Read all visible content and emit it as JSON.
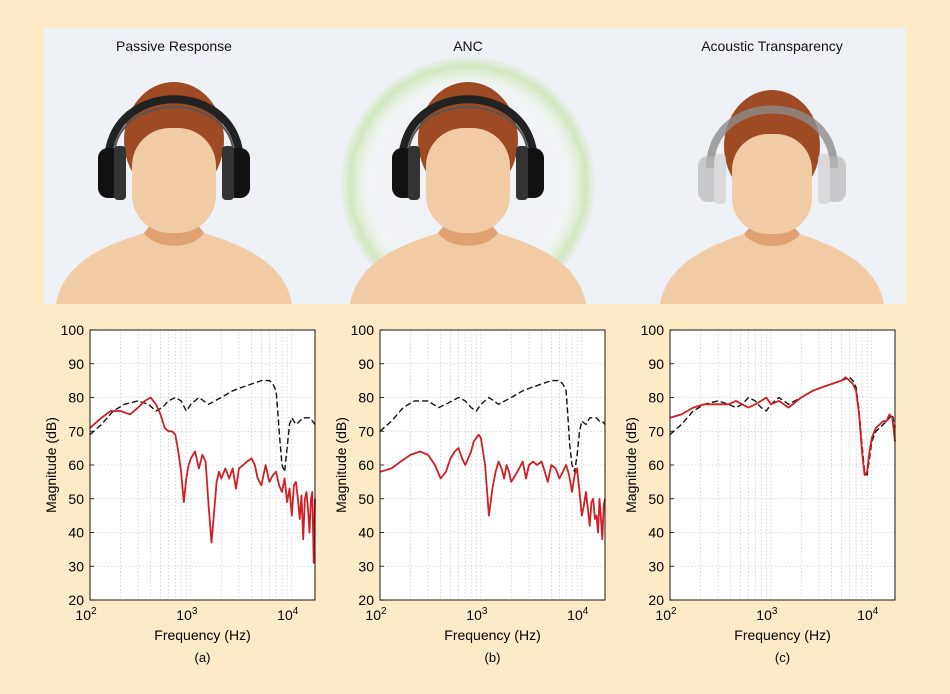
{
  "scene": {
    "labels": [
      "Passive Response",
      "ANC",
      "Acoustic Transparency"
    ]
  },
  "colors": {
    "background": "#fdeac6",
    "panel": "#eef1f5",
    "red": "#d11f25",
    "dashed": "#111111",
    "skin": "#f0cba4",
    "hair": "#9e4a23",
    "anc_glow": "#cde5b8"
  },
  "chart_data": [
    {
      "type": "line",
      "caption": "(a)",
      "xlabel": "Frequency (Hz)",
      "ylabel": "Magnitude (dB)",
      "xscale": "log",
      "xlim": [
        100,
        17000
      ],
      "ylim": [
        20,
        100
      ],
      "yticks": [
        20,
        30,
        40,
        50,
        60,
        70,
        80,
        90,
        100
      ],
      "xtick_labels": [
        "10^2",
        "10^3",
        "10^4"
      ],
      "grid": true,
      "series": [
        {
          "style": "dashed",
          "color": "#111111",
          "x": [
            100,
            130,
            170,
            220,
            300,
            380,
            450,
            520,
            600,
            700,
            800,
            900,
            1000,
            1200,
            1500,
            2000,
            2600,
            3200,
            4000,
            5000,
            6000,
            6500,
            7000,
            7300,
            7600,
            8000,
            8500,
            9000,
            9500,
            10000,
            11000,
            12000,
            13000,
            14000,
            15000,
            16000,
            17000
          ],
          "y": [
            69,
            72,
            76,
            78,
            79,
            78,
            76,
            77,
            79,
            80,
            79,
            76,
            78,
            80,
            78,
            80,
            82,
            83,
            84,
            85,
            85,
            84,
            82,
            75,
            68,
            60,
            58,
            65,
            72,
            74,
            72,
            73,
            74,
            74,
            74,
            73,
            72
          ]
        },
        {
          "style": "solid",
          "color": "#d11f25",
          "x": [
            100,
            130,
            160,
            200,
            250,
            300,
            350,
            400,
            450,
            500,
            550,
            600,
            650,
            700,
            750,
            800,
            850,
            900,
            950,
            1000,
            1100,
            1200,
            1300,
            1400,
            1500,
            1600,
            1700,
            1800,
            1900,
            2000,
            2200,
            2400,
            2600,
            2800,
            3000,
            3300,
            3600,
            4000,
            4300,
            4600,
            5000,
            5500,
            6000,
            6500,
            7000,
            7500,
            8000,
            8500,
            9000,
            9500,
            10000,
            10500,
            11000,
            11500,
            12000,
            12500,
            13000,
            13500,
            14000,
            14500,
            15000,
            15500,
            16000,
            16500,
            17000
          ],
          "y": [
            71,
            74,
            76,
            76,
            75,
            77,
            79,
            80,
            78,
            75,
            71,
            70,
            70,
            69,
            64,
            58,
            49,
            56,
            60,
            62,
            64,
            59,
            63,
            61,
            48,
            37,
            46,
            55,
            58,
            56,
            59,
            56,
            59,
            53,
            59,
            60,
            61,
            62,
            60,
            56,
            54,
            60,
            55,
            57,
            58,
            54,
            52,
            56,
            49,
            53,
            45,
            54,
            55,
            50,
            44,
            51,
            38,
            50,
            52,
            47,
            40,
            50,
            52,
            31,
            50
          ]
        }
      ]
    },
    {
      "type": "line",
      "caption": "(b)",
      "xlabel": "Frequency (Hz)",
      "ylabel": "Magnitude (dB)",
      "xscale": "log",
      "xlim": [
        100,
        17000
      ],
      "ylim": [
        20,
        100
      ],
      "yticks": [
        20,
        30,
        40,
        50,
        60,
        70,
        80,
        90,
        100
      ],
      "xtick_labels": [
        "10^2",
        "10^3",
        "10^4"
      ],
      "grid": true,
      "series": [
        {
          "style": "dashed",
          "color": "#111111",
          "x": [
            100,
            130,
            170,
            220,
            300,
            380,
            450,
            520,
            600,
            700,
            800,
            900,
            1000,
            1200,
            1500,
            2000,
            2600,
            3200,
            4000,
            5000,
            6000,
            6500,
            7000,
            7300,
            7600,
            8000,
            8500,
            9000,
            9500,
            10000,
            11000,
            12000,
            13000,
            14000,
            15000,
            16000,
            17000
          ],
          "y": [
            70,
            73,
            77,
            79,
            79,
            77,
            78,
            79,
            80,
            79,
            77,
            76,
            78,
            80,
            78,
            80,
            82,
            83,
            84,
            85,
            85,
            84,
            82,
            74,
            66,
            60,
            58,
            63,
            70,
            73,
            72,
            74,
            74,
            74,
            73,
            73,
            72
          ]
        },
        {
          "style": "solid",
          "color": "#d11f25",
          "x": [
            100,
            130,
            160,
            200,
            250,
            300,
            350,
            400,
            450,
            500,
            550,
            600,
            650,
            700,
            750,
            800,
            850,
            900,
            950,
            1000,
            1100,
            1200,
            1300,
            1400,
            1500,
            1600,
            1700,
            1800,
            1900,
            2000,
            2200,
            2400,
            2600,
            2800,
            3000,
            3300,
            3600,
            4000,
            4300,
            4600,
            5000,
            5500,
            6000,
            6500,
            7000,
            7500,
            8000,
            8500,
            9000,
            9500,
            10000,
            10500,
            11000,
            11500,
            12000,
            12500,
            13000,
            13500,
            14000,
            14500,
            15000,
            15500,
            16000,
            16500,
            17000
          ],
          "y": [
            58,
            59,
            61,
            63,
            64,
            63,
            60,
            56,
            58,
            62,
            64,
            65,
            62,
            60,
            62,
            64,
            67,
            68,
            69,
            68,
            60,
            45,
            53,
            58,
            61,
            59,
            56,
            60,
            58,
            55,
            57,
            59,
            61,
            56,
            60,
            61,
            60,
            61,
            58,
            55,
            60,
            59,
            56,
            58,
            60,
            57,
            52,
            57,
            59,
            52,
            45,
            48,
            52,
            47,
            42,
            49,
            50,
            44,
            45,
            40,
            50,
            44,
            38,
            48,
            50
          ]
        }
      ]
    },
    {
      "type": "line",
      "caption": "(c)",
      "xlabel": "Frequency (Hz)",
      "ylabel": "Magnitude (dB)",
      "xscale": "log",
      "xlim": [
        100,
        17000
      ],
      "ylim": [
        20,
        100
      ],
      "yticks": [
        20,
        30,
        40,
        50,
        60,
        70,
        80,
        90,
        100
      ],
      "xtick_labels": [
        "10^2",
        "10^3",
        "10^4"
      ],
      "grid": true,
      "series": [
        {
          "style": "dashed",
          "color": "#111111",
          "x": [
            100,
            130,
            170,
            220,
            300,
            380,
            450,
            520,
            600,
            700,
            800,
            900,
            1000,
            1200,
            1500,
            2000,
            2600,
            3200,
            4000,
            5000,
            6000,
            6500,
            7000,
            7500,
            8000,
            8500,
            9000,
            9500,
            10000,
            11000,
            12000,
            13000,
            14000,
            15000,
            16000,
            17000
          ],
          "y": [
            69,
            72,
            76,
            78,
            79,
            78,
            77,
            78,
            80,
            79,
            77,
            76,
            78,
            80,
            78,
            80,
            82,
            83,
            84,
            85,
            86,
            85,
            83,
            76,
            66,
            58,
            57,
            62,
            67,
            70,
            71,
            72,
            73,
            74,
            75,
            71
          ]
        },
        {
          "style": "solid",
          "color": "#d11f25",
          "x": [
            100,
            130,
            170,
            220,
            300,
            380,
            450,
            520,
            600,
            700,
            800,
            900,
            1000,
            1200,
            1500,
            2000,
            2600,
            3200,
            4000,
            5000,
            5500,
            6000,
            6500,
            7000,
            7500,
            8000,
            8500,
            9000,
            9500,
            10000,
            11000,
            12000,
            13000,
            14000,
            15000,
            16000,
            17000
          ],
          "y": [
            74,
            75,
            77,
            78,
            78,
            78,
            79,
            78,
            77,
            78,
            79,
            80,
            78,
            79,
            77,
            80,
            82,
            83,
            84,
            85,
            86,
            85,
            84,
            82,
            75,
            64,
            57,
            58,
            64,
            68,
            71,
            72,
            73,
            73,
            75,
            74,
            67
          ]
        }
      ]
    }
  ]
}
